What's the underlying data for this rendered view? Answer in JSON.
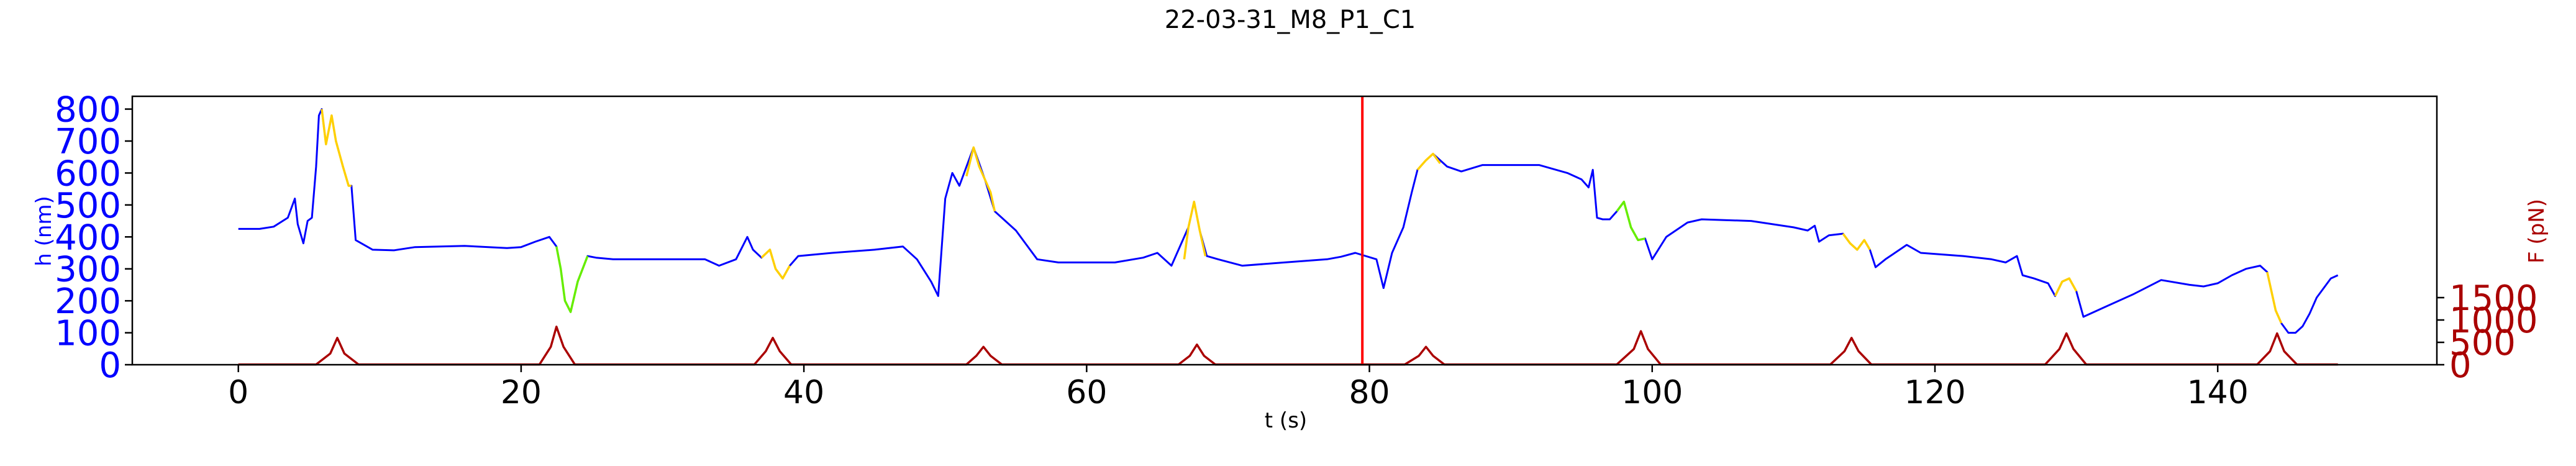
{
  "chart_data": {
    "type": "line",
    "title": "22-03-31_M8_P1_C1",
    "xlabel": "t (s)",
    "ylabel_left": "h (nm)",
    "ylabel_right": "F (pN)",
    "xlim": [
      -7.5,
      155.5
    ],
    "ylim_left": [
      0,
      840
    ],
    "ylim_right": [
      0,
      6000
    ],
    "x_ticks": [
      0,
      20,
      40,
      60,
      80,
      100,
      120,
      140
    ],
    "x_tick_labels": [
      "0",
      "20",
      "40",
      "60",
      "80",
      "100",
      "120",
      "140"
    ],
    "y_left_ticks": [
      0,
      100,
      200,
      300,
      400,
      500,
      600,
      700,
      800
    ],
    "y_left_tick_labels": [
      "0",
      "100",
      "200",
      "300",
      "400",
      "500",
      "600",
      "700",
      "800"
    ],
    "y_right_ticks": [
      0,
      500,
      1000,
      1500
    ],
    "y_right_tick_labels": [
      "0",
      "500",
      "1000",
      "1500"
    ],
    "vertical_marker": {
      "x": 79.5,
      "color": "#ff0000"
    },
    "colors": {
      "h_base": "#0000ff",
      "h_compression": "#ffd000",
      "h_relaxation": "#66ee00",
      "force": "#aa0000",
      "left_axis": "#0000ff",
      "right_axis": "#aa0000"
    },
    "series": [
      {
        "name": "h",
        "axis": "left",
        "color": "#0000ff",
        "points": [
          [
            0,
            425
          ],
          [
            1.5,
            425
          ],
          [
            2.5,
            432
          ],
          [
            3.5,
            460
          ],
          [
            4,
            520
          ],
          [
            4.2,
            440
          ],
          [
            4.6,
            380
          ],
          [
            4.9,
            450
          ],
          [
            5.2,
            460
          ],
          [
            5.5,
            620
          ],
          [
            5.7,
            780
          ],
          [
            5.9,
            800
          ],
          [
            6.2,
            690
          ],
          [
            6.6,
            780
          ],
          [
            6.9,
            700
          ],
          [
            7.4,
            620
          ],
          [
            7.8,
            560
          ],
          [
            8,
            560
          ],
          [
            8.3,
            390
          ],
          [
            9.5,
            360
          ],
          [
            11,
            358
          ],
          [
            12.5,
            368
          ],
          [
            16,
            372
          ],
          [
            19,
            365
          ],
          [
            20,
            368
          ],
          [
            21,
            385
          ],
          [
            22,
            400
          ],
          [
            22.5,
            370
          ],
          [
            22.8,
            300
          ],
          [
            23.1,
            200
          ],
          [
            23.5,
            165
          ],
          [
            24,
            260
          ],
          [
            24.7,
            340
          ],
          [
            25.3,
            335
          ],
          [
            26.5,
            330
          ],
          [
            30,
            330
          ],
          [
            33,
            330
          ],
          [
            34,
            310
          ],
          [
            35.2,
            330
          ],
          [
            36,
            400
          ],
          [
            36.4,
            360
          ],
          [
            37,
            335
          ],
          [
            37.6,
            360
          ],
          [
            38,
            300
          ],
          [
            38.5,
            270
          ],
          [
            39,
            310
          ],
          [
            39.6,
            340
          ],
          [
            42,
            350
          ],
          [
            45,
            360
          ],
          [
            47,
            370
          ],
          [
            48,
            330
          ],
          [
            49,
            260
          ],
          [
            49.5,
            215
          ],
          [
            50,
            520
          ],
          [
            50.5,
            600
          ],
          [
            51,
            560
          ],
          [
            52,
            680
          ],
          [
            52.8,
            580
          ],
          [
            53.5,
            480
          ],
          [
            55,
            420
          ],
          [
            56.5,
            330
          ],
          [
            58,
            320
          ],
          [
            62,
            320
          ],
          [
            64,
            335
          ],
          [
            65,
            350
          ],
          [
            66,
            310
          ],
          [
            66.7,
            380
          ],
          [
            67.2,
            430
          ],
          [
            67.6,
            510
          ],
          [
            68,
            420
          ],
          [
            68.5,
            340
          ],
          [
            69.3,
            330
          ],
          [
            71,
            310
          ],
          [
            74,
            320
          ],
          [
            77,
            330
          ],
          [
            78,
            338
          ],
          [
            79,
            350
          ],
          [
            80.5,
            330
          ],
          [
            81,
            240
          ],
          [
            81.6,
            350
          ],
          [
            82.4,
            430
          ],
          [
            83,
            540
          ],
          [
            83.4,
            610
          ],
          [
            84,
            640
          ],
          [
            84.5,
            660
          ],
          [
            85.5,
            620
          ],
          [
            86.5,
            605
          ],
          [
            88,
            625
          ],
          [
            92,
            625
          ],
          [
            94,
            600
          ],
          [
            95,
            580
          ],
          [
            95.5,
            555
          ],
          [
            95.8,
            610
          ],
          [
            96.1,
            460
          ],
          [
            96.5,
            455
          ],
          [
            97,
            455
          ],
          [
            97.5,
            480
          ],
          [
            98,
            510
          ],
          [
            98.5,
            430
          ],
          [
            99,
            390
          ],
          [
            99.5,
            395
          ],
          [
            100,
            330
          ],
          [
            101,
            400
          ],
          [
            102.5,
            445
          ],
          [
            103.5,
            455
          ],
          [
            107,
            450
          ],
          [
            110,
            430
          ],
          [
            111,
            420
          ],
          [
            111.5,
            435
          ],
          [
            111.8,
            385
          ],
          [
            112.5,
            405
          ],
          [
            113.5,
            410
          ],
          [
            114,
            380
          ],
          [
            114.5,
            360
          ],
          [
            115,
            390
          ],
          [
            115.4,
            360
          ],
          [
            115.8,
            305
          ],
          [
            116.5,
            330
          ],
          [
            117.5,
            360
          ],
          [
            118,
            375
          ],
          [
            119,
            350
          ],
          [
            122,
            340
          ],
          [
            124,
            330
          ],
          [
            125,
            320
          ],
          [
            125.8,
            340
          ],
          [
            126.2,
            280
          ],
          [
            127,
            270
          ],
          [
            128,
            255
          ],
          [
            128.5,
            215
          ],
          [
            129,
            260
          ],
          [
            129.5,
            270
          ],
          [
            130,
            230
          ],
          [
            130.5,
            150
          ],
          [
            132,
            180
          ],
          [
            134,
            220
          ],
          [
            136,
            265
          ],
          [
            138,
            250
          ],
          [
            139,
            245
          ],
          [
            140,
            255
          ],
          [
            141,
            280
          ],
          [
            142,
            300
          ],
          [
            143,
            310
          ],
          [
            143.5,
            290
          ],
          [
            144.1,
            170
          ],
          [
            144.5,
            130
          ],
          [
            145,
            100
          ],
          [
            145.5,
            100
          ],
          [
            146,
            120
          ],
          [
            146.5,
            160
          ],
          [
            147,
            210
          ],
          [
            148,
            270
          ],
          [
            148.5,
            280
          ]
        ]
      },
      {
        "name": "h (compression segments)",
        "axis": "left",
        "color": "#ffd000",
        "segments": [
          [
            [
              5.9,
              800
            ],
            [
              6.2,
              690
            ],
            [
              6.6,
              780
            ],
            [
              6.9,
              700
            ],
            [
              7.4,
              620
            ],
            [
              7.8,
              560
            ],
            [
              8,
              560
            ]
          ],
          [
            [
              37,
              335
            ],
            [
              37.6,
              360
            ],
            [
              38,
              300
            ],
            [
              38.5,
              270
            ],
            [
              39,
              310
            ]
          ],
          [
            [
              51.5,
              590
            ],
            [
              52,
              680
            ],
            [
              52.4,
              620
            ],
            [
              52.8,
              580
            ],
            [
              53.2,
              540
            ],
            [
              53.5,
              480
            ]
          ],
          [
            [
              66.9,
              330
            ],
            [
              67.2,
              430
            ],
            [
              67.6,
              510
            ],
            [
              68,
              420
            ],
            [
              68.4,
              340
            ]
          ],
          [
            [
              83.4,
              610
            ],
            [
              84,
              640
            ],
            [
              84.5,
              660
            ],
            [
              85,
              630
            ]
          ],
          [
            [
              113.5,
              410
            ],
            [
              114,
              380
            ],
            [
              114.5,
              360
            ],
            [
              115,
              390
            ],
            [
              115.4,
              360
            ]
          ],
          [
            [
              128.5,
              215
            ],
            [
              129,
              260
            ],
            [
              129.5,
              270
            ],
            [
              130,
              230
            ]
          ],
          [
            [
              143.5,
              290
            ],
            [
              144.1,
              170
            ],
            [
              144.5,
              130
            ]
          ]
        ]
      },
      {
        "name": "h (relaxation segments)",
        "axis": "left",
        "color": "#66ee00",
        "segments": [
          [
            [
              22.5,
              370
            ],
            [
              22.8,
              300
            ],
            [
              23.1,
              200
            ],
            [
              23.5,
              165
            ],
            [
              24,
              260
            ],
            [
              24.7,
              340
            ]
          ],
          [
            [
              97.5,
              480
            ],
            [
              98,
              510
            ],
            [
              98.5,
              430
            ],
            [
              99,
              390
            ],
            [
              99.5,
              395
            ]
          ]
        ]
      },
      {
        "name": "F",
        "axis": "right",
        "color": "#aa0000",
        "points": [
          [
            0,
            5
          ],
          [
            5.5,
            5
          ],
          [
            6.5,
            250
          ],
          [
            7,
            600
          ],
          [
            7.5,
            250
          ],
          [
            8.5,
            5
          ],
          [
            21.3,
            5
          ],
          [
            22.1,
            400
          ],
          [
            22.5,
            850
          ],
          [
            23,
            400
          ],
          [
            23.8,
            5
          ],
          [
            36.5,
            5
          ],
          [
            37.3,
            300
          ],
          [
            37.8,
            600
          ],
          [
            38.3,
            300
          ],
          [
            39.1,
            5
          ],
          [
            51.5,
            5
          ],
          [
            52.2,
            200
          ],
          [
            52.7,
            400
          ],
          [
            53.2,
            200
          ],
          [
            54,
            5
          ],
          [
            66.5,
            5
          ],
          [
            67.3,
            200
          ],
          [
            67.8,
            450
          ],
          [
            68.3,
            200
          ],
          [
            69.1,
            5
          ],
          [
            82.5,
            5
          ],
          [
            83.5,
            200
          ],
          [
            84,
            400
          ],
          [
            84.5,
            200
          ],
          [
            85.3,
            5
          ],
          [
            97.5,
            5
          ],
          [
            98.7,
            350
          ],
          [
            99.2,
            750
          ],
          [
            99.7,
            350
          ],
          [
            100.6,
            5
          ],
          [
            112.6,
            5
          ],
          [
            113.6,
            300
          ],
          [
            114.1,
            600
          ],
          [
            114.6,
            300
          ],
          [
            115.5,
            5
          ],
          [
            127.8,
            5
          ],
          [
            128.8,
            350
          ],
          [
            129.3,
            700
          ],
          [
            129.8,
            350
          ],
          [
            130.7,
            5
          ],
          [
            142.8,
            5
          ],
          [
            143.7,
            300
          ],
          [
            144.2,
            700
          ],
          [
            144.7,
            300
          ],
          [
            145.6,
            5
          ],
          [
            148.5,
            5
          ]
        ]
      }
    ]
  }
}
